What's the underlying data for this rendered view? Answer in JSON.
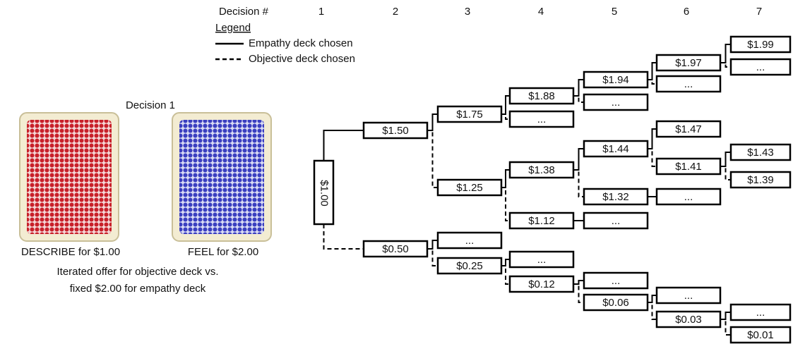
{
  "header": {
    "label": "Decision #",
    "columns": [
      "1",
      "2",
      "3",
      "4",
      "5",
      "6",
      "7"
    ]
  },
  "legend": {
    "title": "Legend",
    "items": [
      "Empathy deck chosen",
      "Objective deck chosen"
    ]
  },
  "left": {
    "title": "Decision 1",
    "cards": [
      "DESCRIBE for $1.00",
      "FEEL for $2.00"
    ],
    "caption": [
      "Iterated offer for objective deck vs.",
      "fixed $2.00 for empathy deck"
    ]
  },
  "tree": {
    "nodes": [
      "$1.00",
      "$1.50",
      "$0.50",
      "$1.75",
      "...",
      "$1.88",
      "...",
      "$1.94",
      "...",
      "$1.97",
      "...",
      "$1.99",
      "$1.25",
      "$1.38",
      "$1.12",
      "...",
      "$1.44",
      "$1.32",
      "...",
      "$1.47",
      "$1.41",
      "$1.43",
      "$1.39",
      "...",
      "$0.25",
      "...",
      "$0.12",
      "...",
      "$0.06",
      "...",
      "$0.03",
      "...",
      "$0.01"
    ]
  }
}
